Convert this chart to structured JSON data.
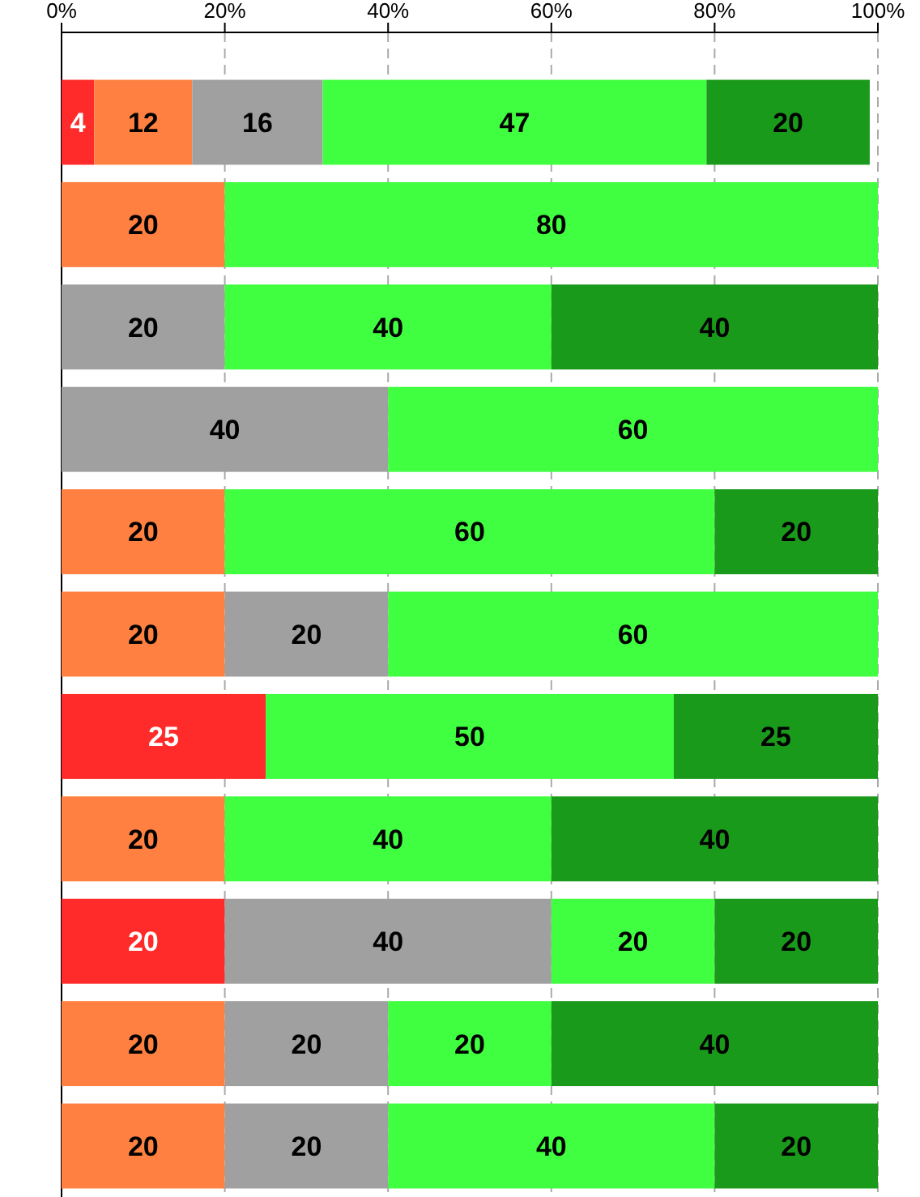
{
  "chart_data": {
    "type": "bar",
    "orientation": "horizontal",
    "stacked": true,
    "data_labels": true,
    "grid": "x",
    "categories": [
      null,
      null,
      null,
      null,
      null,
      null,
      null,
      null,
      null,
      null,
      null
    ],
    "xlim": [
      0,
      100
    ],
    "xticks": [
      {
        "value": 0,
        "label": "0%"
      },
      {
        "value": 20,
        "label": "20%"
      },
      {
        "value": 40,
        "label": "40%"
      },
      {
        "value": 60,
        "label": "60%"
      },
      {
        "value": 80,
        "label": "80%"
      },
      {
        "value": 100,
        "label": "100%"
      }
    ],
    "series": [
      {
        "color": "#ff2a2a",
        "values": [
          4,
          null,
          null,
          null,
          null,
          null,
          25,
          null,
          20,
          null,
          null
        ]
      },
      {
        "color": "#ff8040",
        "values": [
          12,
          20,
          null,
          null,
          20,
          20,
          null,
          20,
          null,
          20,
          20
        ]
      },
      {
        "color": "#a0a0a0",
        "values": [
          16,
          null,
          20,
          40,
          null,
          20,
          null,
          null,
          40,
          20,
          20
        ]
      },
      {
        "color": "#40ff40",
        "values": [
          47,
          80,
          40,
          60,
          60,
          60,
          50,
          40,
          20,
          20,
          40
        ]
      },
      {
        "color": "#1a9a1a",
        "values": [
          20,
          null,
          40,
          null,
          20,
          null,
          25,
          40,
          20,
          40,
          20
        ]
      }
    ]
  }
}
